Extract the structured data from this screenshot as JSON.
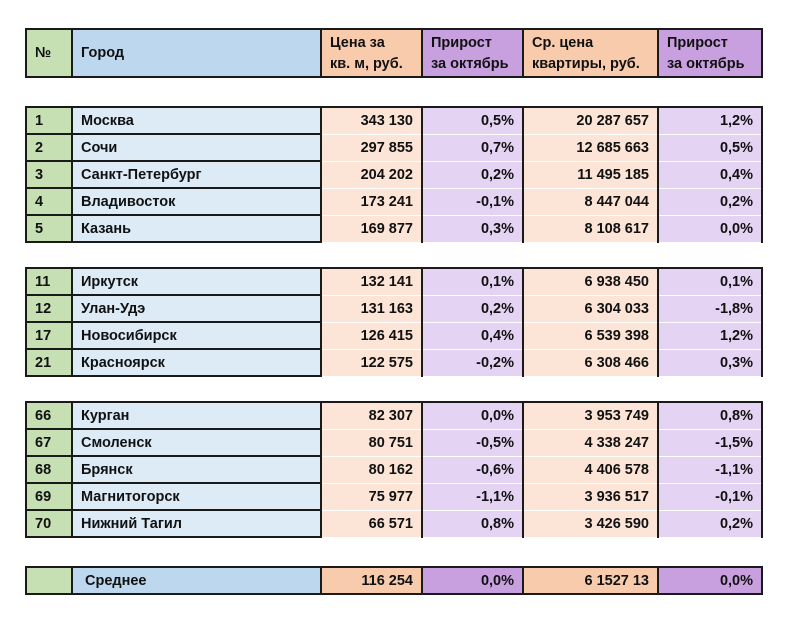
{
  "header": {
    "num": "№",
    "city": "Город",
    "price_m2_line1": "Цена за",
    "price_m2_line2": "кв. м, руб.",
    "growth1_line1": "Прирост",
    "growth1_line2": "за октябрь",
    "avg_price_line1": "Ср. цена",
    "avg_price_line2": "квартиры, руб.",
    "growth2_line1": "Прирост",
    "growth2_line2": "за октябрь"
  },
  "groups": [
    {
      "rows": [
        {
          "num": "1",
          "city": "Москва",
          "price_m2": "343 130",
          "growth_m2": "0,5%",
          "avg_price": "20 287 657",
          "growth_avg": "1,2%"
        },
        {
          "num": "2",
          "city": "Сочи",
          "price_m2": "297 855",
          "growth_m2": "0,7%",
          "avg_price": "12 685 663",
          "growth_avg": "0,5%"
        },
        {
          "num": "3",
          "city": "Санкт-Петербург",
          "price_m2": "204 202",
          "growth_m2": "0,2%",
          "avg_price": "11 495 185",
          "growth_avg": "0,4%"
        },
        {
          "num": "4",
          "city": "Владивосток",
          "price_m2": "173 241",
          "growth_m2": "-0,1%",
          "avg_price": "8 447 044",
          "growth_avg": "0,2%"
        },
        {
          "num": "5",
          "city": "Казань",
          "price_m2": "169 877",
          "growth_m2": "0,3%",
          "avg_price": "8 108 617",
          "growth_avg": "0,0%"
        }
      ]
    },
    {
      "rows": [
        {
          "num": "11",
          "city": "Иркутск",
          "price_m2": "132 141",
          "growth_m2": "0,1%",
          "avg_price": "6 938 450",
          "growth_avg": "0,1%"
        },
        {
          "num": "12",
          "city": "Улан-Удэ",
          "price_m2": "131 163",
          "growth_m2": "0,2%",
          "avg_price": "6 304 033",
          "growth_avg": "-1,8%"
        },
        {
          "num": "17",
          "city": "Новосибирск",
          "price_m2": "126 415",
          "growth_m2": "0,4%",
          "avg_price": "6 539 398",
          "growth_avg": "1,2%"
        },
        {
          "num": "21",
          "city": "Красноярск",
          "price_m2": "122 575",
          "growth_m2": "-0,2%",
          "avg_price": "6 308 466",
          "growth_avg": "0,3%"
        }
      ]
    },
    {
      "rows": [
        {
          "num": "66",
          "city": "Курган",
          "price_m2": "82 307",
          "growth_m2": "0,0%",
          "avg_price": "3 953 749",
          "growth_avg": "0,8%"
        },
        {
          "num": "67",
          "city": "Смоленск",
          "price_m2": "80 751",
          "growth_m2": "-0,5%",
          "avg_price": "4 338 247",
          "growth_avg": "-1,5%"
        },
        {
          "num": "68",
          "city": "Брянск",
          "price_m2": "80 162",
          "growth_m2": "-0,6%",
          "avg_price": "4 406 578",
          "growth_avg": "-1,1%"
        },
        {
          "num": "69",
          "city": "Магнитогорск",
          "price_m2": "75 977",
          "growth_m2": "-1,1%",
          "avg_price": "3 936 517",
          "growth_avg": "-0,1%"
        },
        {
          "num": "70",
          "city": "Нижний Тагил",
          "price_m2": "66 571",
          "growth_m2": "0,8%",
          "avg_price": "3 426 590",
          "growth_avg": "0,2%"
        }
      ]
    }
  ],
  "summary": {
    "label": "Среднее",
    "price_m2": "116 254",
    "growth_m2": "0,0%",
    "avg_price": "6 1527 13",
    "growth_avg": "0,0%"
  }
}
